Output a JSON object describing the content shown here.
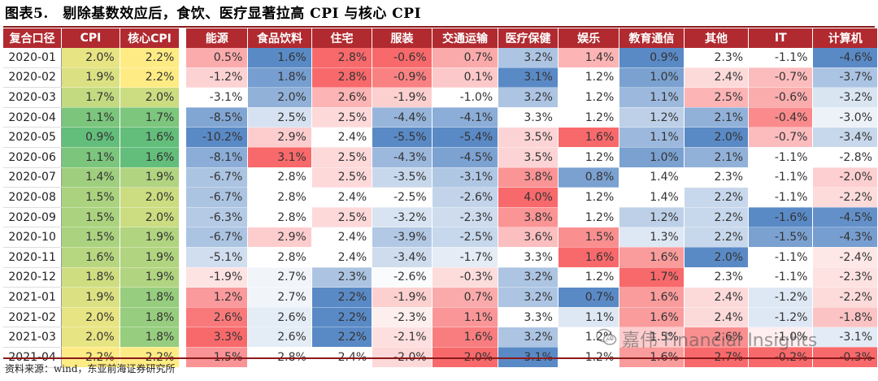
{
  "title": "图表5.　剔除基数效应后，食饮、医疗显著拉高 CPI 与核心 CPI",
  "columns": [
    "复合口径",
    "CPI",
    "核心CPI",
    "能源",
    "食品饮料",
    "住宅",
    "服装",
    "交通运输",
    "医疗保健",
    "娱乐",
    "教育通信",
    "其他",
    "IT",
    "计算机"
  ],
  "rows": [
    [
      "2020-01",
      "2.0%",
      "2.2%",
      "0.5%",
      "1.6%",
      "2.8%",
      "-0.6%",
      "0.7%",
      "3.2%",
      "1.4%",
      "0.9%",
      "2.3%",
      "-1.1%",
      "-4.6%"
    ],
    [
      "2020-02",
      "1.9%",
      "2.2%",
      "-1.2%",
      "1.8%",
      "2.8%",
      "-0.9%",
      "0.1%",
      "3.1%",
      "1.2%",
      "1.0%",
      "2.4%",
      "-0.7%",
      "-3.7%"
    ],
    [
      "2020-03",
      "1.7%",
      "2.0%",
      "-3.1%",
      "2.0%",
      "2.6%",
      "-1.9%",
      "-1.0%",
      "3.2%",
      "1.2%",
      "1.1%",
      "2.5%",
      "-0.6%",
      "-3.2%"
    ],
    [
      "2020-04",
      "1.1%",
      "1.7%",
      "-8.5%",
      "2.5%",
      "2.5%",
      "-4.4%",
      "-4.1%",
      "3.3%",
      "1.2%",
      "1.2%",
      "2.1%",
      "-0.4%",
      "-3.0%"
    ],
    [
      "2020-05",
      "0.9%",
      "1.6%",
      "-10.2%",
      "2.9%",
      "2.4%",
      "-5.5%",
      "-5.4%",
      "3.5%",
      "1.6%",
      "1.1%",
      "2.0%",
      "-0.7%",
      "-3.4%"
    ],
    [
      "2020-06",
      "1.1%",
      "1.6%",
      "-8.1%",
      "3.1%",
      "2.5%",
      "-4.3%",
      "-4.5%",
      "3.5%",
      "1.2%",
      "1.0%",
      "2.1%",
      "-1.1%",
      "-2.8%"
    ],
    [
      "2020-07",
      "1.4%",
      "1.9%",
      "-6.7%",
      "2.8%",
      "2.5%",
      "-3.5%",
      "-3.1%",
      "3.8%",
      "0.8%",
      "1.4%",
      "2.3%",
      "-1.1%",
      "-2.0%"
    ],
    [
      "2020-08",
      "1.5%",
      "2.0%",
      "-6.7%",
      "2.8%",
      "2.4%",
      "-2.5%",
      "-2.6%",
      "4.0%",
      "1.2%",
      "1.4%",
      "2.2%",
      "-1.1%",
      "-2.2%"
    ],
    [
      "2020-09",
      "1.5%",
      "2.0%",
      "-6.3%",
      "2.8%",
      "2.5%",
      "-3.2%",
      "-2.3%",
      "3.8%",
      "1.2%",
      "1.2%",
      "2.2%",
      "-1.6%",
      "-4.5%"
    ],
    [
      "2020-10",
      "1.5%",
      "1.9%",
      "-6.7%",
      "2.9%",
      "2.4%",
      "-3.9%",
      "-2.5%",
      "3.6%",
      "1.5%",
      "1.3%",
      "2.2%",
      "-1.5%",
      "-4.3%"
    ],
    [
      "2020-11",
      "1.6%",
      "1.9%",
      "-5.1%",
      "2.8%",
      "2.4%",
      "-3.4%",
      "-1.7%",
      "3.3%",
      "1.6%",
      "1.6%",
      "2.0%",
      "-1.1%",
      "-2.4%"
    ],
    [
      "2020-12",
      "1.8%",
      "1.9%",
      "-1.9%",
      "2.7%",
      "2.3%",
      "-2.6%",
      "-0.3%",
      "3.2%",
      "1.2%",
      "1.7%",
      "2.3%",
      "-1.1%",
      "-2.3%"
    ],
    [
      "2021-01",
      "1.9%",
      "1.8%",
      "1.2%",
      "2.7%",
      "2.2%",
      "-1.9%",
      "0.7%",
      "3.2%",
      "0.7%",
      "1.6%",
      "2.4%",
      "-1.2%",
      "-2.2%"
    ],
    [
      "2021-02",
      "2.0%",
      "1.8%",
      "2.6%",
      "2.6%",
      "2.2%",
      "-2.3%",
      "1.1%",
      "3.3%",
      "1.1%",
      "1.6%",
      "2.4%",
      "-1.2%",
      "-1.8%"
    ],
    [
      "2021-03",
      "2.0%",
      "1.8%",
      "3.3%",
      "2.6%",
      "2.2%",
      "-2.1%",
      "1.6%",
      "3.2%",
      "1.2%",
      "1.5%",
      "2.6%",
      "-1.0%",
      "-3.1%"
    ],
    [
      "2021-04",
      "2.2%",
      "2.2%",
      "1.5%",
      "2.8%",
      "2.4%",
      "-2.0%",
      "2.0%",
      "3.1%",
      "1.2%",
      "1.6%",
      "2.7%",
      "-0.2%",
      "-0.3%"
    ]
  ],
  "source": "资料来源：wind，东亚前海证券研究所",
  "watermark": "嘉伟 Financial Insights",
  "colors": {
    "header_bg": "#b02a30",
    "high": "#f8696b",
    "mid": "#ffffff",
    "low": "#5a8ac6",
    "scale_green": "#63be7b",
    "scale_yellow": "#ffeb84"
  }
}
